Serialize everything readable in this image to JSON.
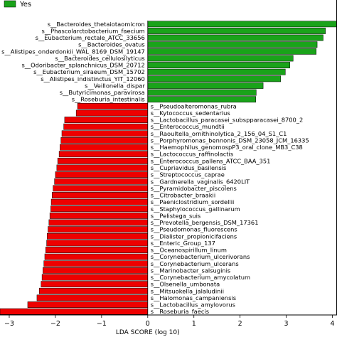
{
  "chart_data": {
    "type": "bar",
    "orientation": "horizontal",
    "xlabel": "LDA SCORE (log 10)",
    "xlim": [
      -3.2,
      4.1
    ],
    "xticks": [
      -3,
      -2,
      -1,
      0,
      1,
      2,
      3,
      4
    ],
    "legend": {
      "position": "top-left",
      "entries": [
        {
          "name": "Yes",
          "color": "#1aa31a"
        }
      ]
    },
    "colors": {
      "positive": "#1aa31a",
      "negative": "#ee0000"
    },
    "bars": [
      {
        "label": "s__Bacteroides_thetaiotaomicron",
        "value": 4.15
      },
      {
        "label": "s__Phascolarctobacterium_faecium",
        "value": 3.85
      },
      {
        "label": "s__Eubacterium_rectale_ATCC_33656",
        "value": 3.8
      },
      {
        "label": "s__Bacteroides_ovatus",
        "value": 3.67
      },
      {
        "label": "s__Alistipes_onderdonkii_WAL_8169_DSM_19147",
        "value": 3.65
      },
      {
        "label": "s__Bacteroides_cellulosilyticus",
        "value": 3.15
      },
      {
        "label": "s__Odoribacter_splanchnicus_DSM_20712",
        "value": 3.08
      },
      {
        "label": "s__Eubacterium_siraeum_DSM_15702",
        "value": 2.98
      },
      {
        "label": "s__Alistipes_indistinctus_YIT_12060",
        "value": 2.88
      },
      {
        "label": "s__Veillonella_dispar",
        "value": 2.5
      },
      {
        "label": "s__Butyricimonas_paravirosa",
        "value": 2.35
      },
      {
        "label": "s__Roseburia_intestinalis",
        "value": 2.34
      },
      {
        "label": "s__Pseudoalteromonas_rubra",
        "value": -1.52
      },
      {
        "label": "s__Kytococcus_sedentarius",
        "value": -1.55
      },
      {
        "label": "s__Lactobacillus_paracasei_subspparacasei_8700_2",
        "value": -1.8
      },
      {
        "label": "s__Enterococcus_mundtii",
        "value": -1.82
      },
      {
        "label": "s__Raoultella_ornithinolytica_2_156_04_S1_C1",
        "value": -1.86
      },
      {
        "label": "s__Porphyromonas_bennonis_DSM_23058_JCM_16335",
        "value": -1.88
      },
      {
        "label": "s__Haemophilus_genomospP3_oral_clone_MB3_C38",
        "value": -1.9
      },
      {
        "label": "s__Lactococcus_raffinolactis",
        "value": -1.92
      },
      {
        "label": "s__Enterococcus_pallens_ATCC_BAA_351",
        "value": -1.95
      },
      {
        "label": "s__Cupriavidus_basilensis",
        "value": -1.97
      },
      {
        "label": "s__Streptococcus_caprae",
        "value": -2.0
      },
      {
        "label": "s__Gardnerella_vaginalis_6420LIT",
        "value": -2.02
      },
      {
        "label": "s__Pyramidobacter_piscolens",
        "value": -2.05
      },
      {
        "label": "s__Citrobacter_braakii",
        "value": -2.07
      },
      {
        "label": "s__Paeniclostridium_sordellii",
        "value": -2.09
      },
      {
        "label": "s__Staphylococcus_gallinarum",
        "value": -2.1
      },
      {
        "label": "s__Pelistega_suis",
        "value": -2.12
      },
      {
        "label": "s__Prevotella_bergensis_DSM_17361",
        "value": -2.14
      },
      {
        "label": "s__Pseudomonas_fluorescens",
        "value": -2.16
      },
      {
        "label": "s__Dialister_propionicifaciens",
        "value": -2.18
      },
      {
        "label": "s__Enteric_Group_137",
        "value": -2.19
      },
      {
        "label": "s__Oceanospirillum_linum",
        "value": -2.21
      },
      {
        "label": "s__Corynebacterium_ulcerivorans",
        "value": -2.23
      },
      {
        "label": "s__Corynebacterium_ulcerans",
        "value": -2.25
      },
      {
        "label": "s__Marinobacter_salsuginis",
        "value": -2.27
      },
      {
        "label": "s__Corynebacterium_amycolatum",
        "value": -2.29
      },
      {
        "label": "s__Olsenella_umbonata",
        "value": -2.31
      },
      {
        "label": "s__Mitsuokella_jalaludinii",
        "value": -2.35
      },
      {
        "label": "s__Halomonas_campaniensis",
        "value": -2.4
      },
      {
        "label": "s__Lactobacillus_amylovorus",
        "value": -2.6
      },
      {
        "label": "s__Roseburia_faecis",
        "value": -3.2
      }
    ]
  }
}
